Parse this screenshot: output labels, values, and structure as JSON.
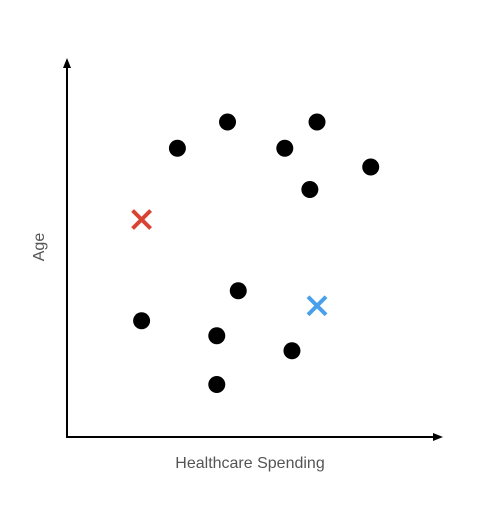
{
  "chart_data": {
    "type": "scatter",
    "title": "",
    "xlabel": "Healthcare Spending",
    "ylabel": "Age",
    "xlim": [
      0,
      100
    ],
    "ylim": [
      0,
      100
    ],
    "grid": false,
    "axis_ticks": false,
    "series": [
      {
        "marker": "circle",
        "color": "#000000",
        "points": [
          {
            "x": 30,
            "y": 77
          },
          {
            "x": 44,
            "y": 84
          },
          {
            "x": 60,
            "y": 77
          },
          {
            "x": 69,
            "y": 84
          },
          {
            "x": 84,
            "y": 72
          },
          {
            "x": 67,
            "y": 66
          },
          {
            "x": 47,
            "y": 39
          },
          {
            "x": 20,
            "y": 31
          },
          {
            "x": 41,
            "y": 27
          },
          {
            "x": 62,
            "y": 23
          },
          {
            "x": 41,
            "y": 14
          }
        ]
      },
      {
        "marker": "x",
        "color": "#d94432",
        "points": [
          {
            "x": 20,
            "y": 58
          }
        ]
      },
      {
        "marker": "x",
        "color": "#4a9fea",
        "points": [
          {
            "x": 69,
            "y": 35
          }
        ]
      }
    ]
  }
}
